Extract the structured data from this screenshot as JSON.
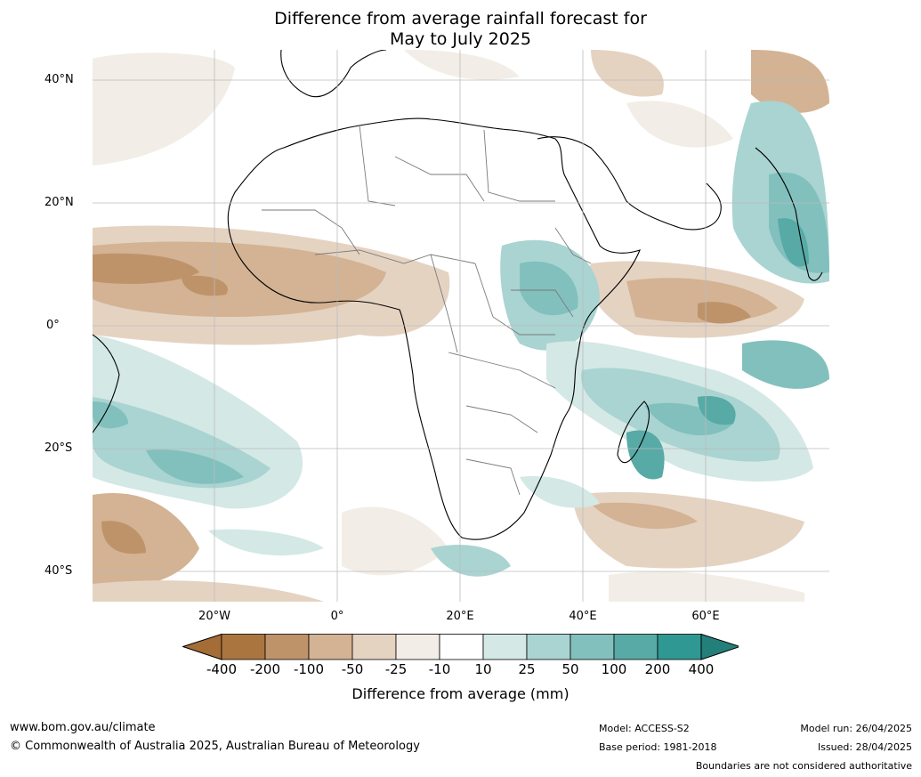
{
  "title_line1": "Difference from average rainfall forecast for",
  "title_line2": "May to July 2025",
  "lat_labels": [
    "40°N",
    "20°N",
    "0°",
    "20°S",
    "40°S"
  ],
  "lon_labels": [
    "20°W",
    "0°",
    "20°E",
    "40°E",
    "60°E"
  ],
  "colorbar": {
    "labels": [
      "-400",
      "-200",
      "-100",
      "-50",
      "-25",
      "-10",
      "10",
      "25",
      "50",
      "100",
      "200",
      "400"
    ],
    "colors": [
      "#a46c36",
      "#ab753f",
      "#bf936a",
      "#d3b394",
      "#e5d3c2",
      "#f2ede6",
      "#ffffff",
      "#d4e8e6",
      "#a9d4d1",
      "#82c0bd",
      "#57aaa6",
      "#2f9893",
      "#237f7a"
    ],
    "title": "Difference from average (mm)"
  },
  "footer": {
    "url": "www.bom.gov.au/climate",
    "copyright": "© Commonwealth of Australia 2025, Australian Bureau of Meteorology",
    "model": "Model: ACCESS-S2",
    "base_period": "Base period: 1981-2018",
    "model_run": "Model run: 26/04/2025",
    "issued": "Issued: 28/04/2025",
    "disclaimer": "Boundaries are not considered authoritative"
  }
}
